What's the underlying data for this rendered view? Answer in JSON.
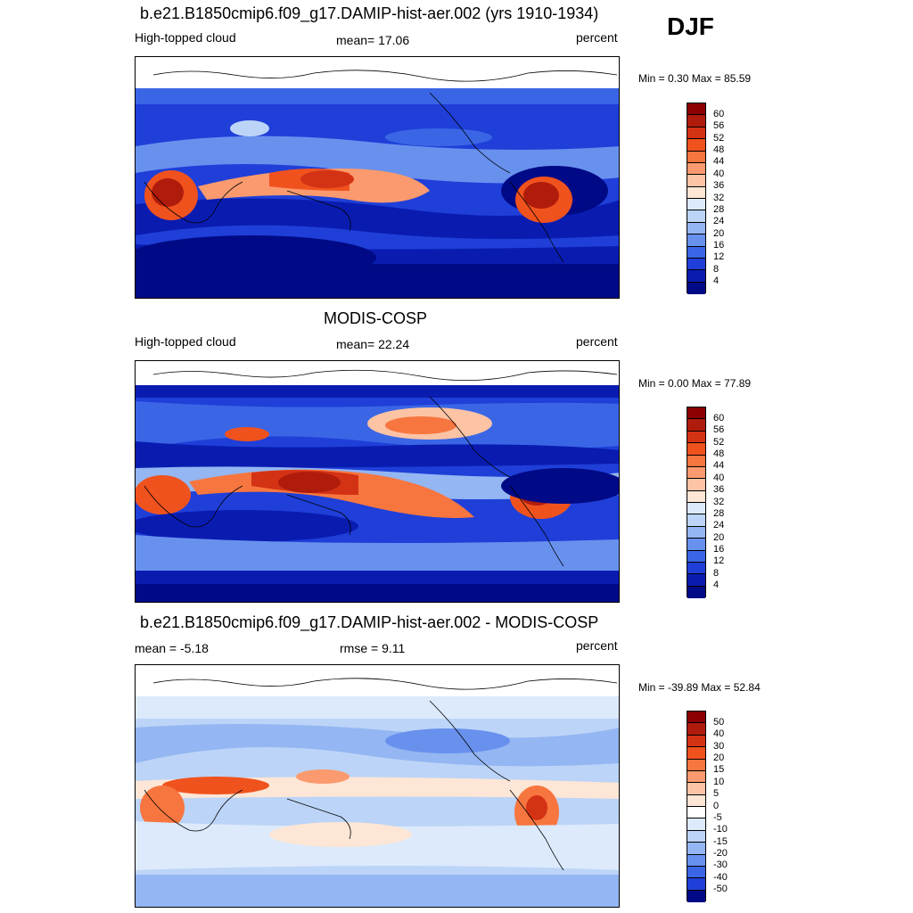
{
  "season": "DJF",
  "panels": [
    {
      "title": "b.e21.B1850cmip6.f09_g17.DAMIP-hist-aer.002 (yrs 1910-1934)",
      "left_label": "High-topped cloud",
      "center_label": "mean=  17.06",
      "right_label": "percent",
      "minmax": "Min =   0.30 Max =  85.59",
      "levels": [
        "60",
        "56",
        "52",
        "48",
        "44",
        "40",
        "36",
        "32",
        "28",
        "24",
        "20",
        "16",
        "12",
        "8",
        "4"
      ],
      "colors": [
        "#8b0000",
        "#b01c0c",
        "#d43214",
        "#f0521e",
        "#f7763f",
        "#fa9a6e",
        "#fcc3a4",
        "#fde6d6",
        "#dceafb",
        "#bcd4f7",
        "#94b6f2",
        "#6891ee",
        "#3a66e6",
        "#1f3fd8",
        "#0a1cb0",
        "#000a86"
      ]
    },
    {
      "title": "MODIS-COSP",
      "left_label": "High-topped cloud",
      "center_label": "mean=  22.24",
      "right_label": "percent",
      "minmax": "Min =   0.00 Max =  77.89",
      "levels": [
        "60",
        "56",
        "52",
        "48",
        "44",
        "40",
        "36",
        "32",
        "28",
        "24",
        "20",
        "16",
        "12",
        "8",
        "4"
      ],
      "colors": [
        "#8b0000",
        "#b01c0c",
        "#d43214",
        "#f0521e",
        "#f7763f",
        "#fa9a6e",
        "#fcc3a4",
        "#fde6d6",
        "#dceafb",
        "#bcd4f7",
        "#94b6f2",
        "#6891ee",
        "#3a66e6",
        "#1f3fd8",
        "#0a1cb0",
        "#000a86"
      ]
    },
    {
      "title": "b.e21.B1850cmip6.f09_g17.DAMIP-hist-aer.002 - MODIS-COSP",
      "left_label": "mean =  -5.18",
      "center_label": "rmse =   9.11",
      "right_label": "percent",
      "minmax": "Min = -39.89 Max =  52.84",
      "levels": [
        "50",
        "40",
        "30",
        "20",
        "15",
        "10",
        "5",
        "0",
        "-5",
        "-10",
        "-15",
        "-20",
        "-30",
        "-40",
        "-50"
      ],
      "colors": [
        "#8b0000",
        "#b01c0c",
        "#d43214",
        "#f0521e",
        "#f7763f",
        "#fa9a6e",
        "#fcc3a4",
        "#fde6d6",
        "#ffffff",
        "#dceafb",
        "#bcd4f7",
        "#94b6f2",
        "#6891ee",
        "#3a66e6",
        "#1f3fd8",
        "#000a86"
      ]
    }
  ]
}
